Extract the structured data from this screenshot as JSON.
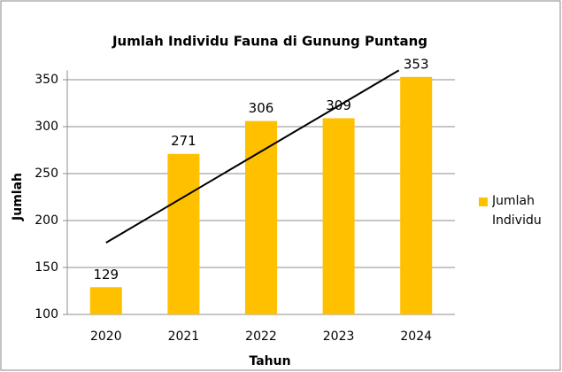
{
  "chart_data": {
    "type": "bar",
    "title": "Jumlah Individu Fauna di Gunung Puntang",
    "x_label": "Tahun",
    "y_label": "Jumlah",
    "categories": [
      "2020",
      "2021",
      "2022",
      "2023",
      "2024"
    ],
    "series": [
      {
        "name": "Jumlah Individu",
        "color": "#ffc000",
        "values": [
          129,
          271,
          306,
          309,
          353
        ]
      }
    ],
    "ylim": [
      100,
      360
    ],
    "yticks": [
      100,
      150,
      200,
      250,
      300,
      350
    ],
    "grid": true,
    "legend": "right",
    "trendline": "linear"
  }
}
